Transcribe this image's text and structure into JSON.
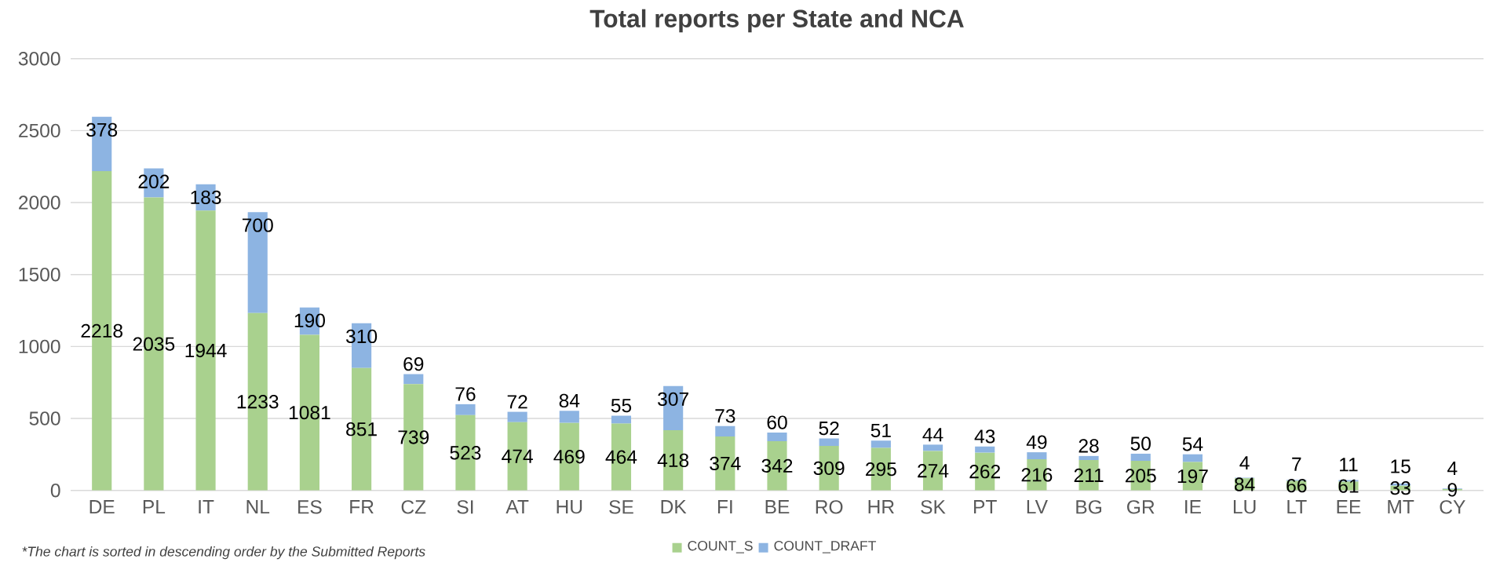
{
  "chart_data": {
    "type": "bar",
    "stacked": true,
    "title": "Total reports per State and NCA",
    "categories": [
      "DE",
      "PL",
      "IT",
      "NL",
      "ES",
      "FR",
      "CZ",
      "SI",
      "AT",
      "HU",
      "SE",
      "DK",
      "FI",
      "BE",
      "RO",
      "HR",
      "SK",
      "PT",
      "LV",
      "BG",
      "GR",
      "IE",
      "LU",
      "LT",
      "EE",
      "MT",
      "CY"
    ],
    "series": [
      {
        "name": "COUNT_S",
        "color": "#a9d18e",
        "values": [
          2218,
          2035,
          1944,
          1233,
          1081,
          851,
          739,
          523,
          474,
          469,
          464,
          418,
          374,
          342,
          309,
          295,
          274,
          262,
          216,
          211,
          205,
          197,
          84,
          66,
          61,
          33,
          9
        ]
      },
      {
        "name": "COUNT_DRAFT",
        "color": "#8db4e2",
        "values": [
          378,
          202,
          183,
          700,
          190,
          310,
          69,
          76,
          72,
          84,
          55,
          307,
          73,
          60,
          52,
          51,
          44,
          43,
          49,
          28,
          50,
          54,
          4,
          7,
          11,
          15,
          4
        ]
      }
    ],
    "ylim": [
      0,
      3000
    ],
    "yticks": [
      0,
      500,
      1000,
      1500,
      2000,
      2500,
      3000
    ],
    "grid": "y",
    "legend": "bottom",
    "data_labels": true,
    "annotations": [
      "*The chart is sorted in descending order by the Submitted Reports"
    ]
  }
}
